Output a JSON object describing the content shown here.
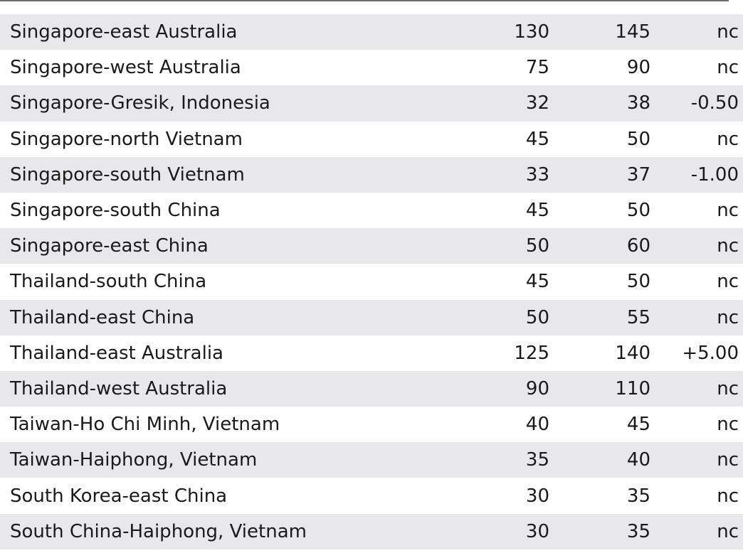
{
  "rows": [
    {
      "route": "Singapore-east Australia",
      "low": "130",
      "high": "145",
      "change": "nc"
    },
    {
      "route": "Singapore-west Australia",
      "low": "75",
      "high": "90",
      "change": "nc"
    },
    {
      "route": "Singapore-Gresik, Indonesia",
      "low": "32",
      "high": "38",
      "change": "-0.50"
    },
    {
      "route": "Singapore-north Vietnam",
      "low": "45",
      "high": "50",
      "change": "nc"
    },
    {
      "route": "Singapore-south Vietnam",
      "low": "33",
      "high": "37",
      "change": "-1.00"
    },
    {
      "route": "Singapore-south China",
      "low": "45",
      "high": "50",
      "change": "nc"
    },
    {
      "route": "Singapore-east China",
      "low": "50",
      "high": "60",
      "change": "nc"
    },
    {
      "route": "Thailand-south China",
      "low": "45",
      "high": "50",
      "change": "nc"
    },
    {
      "route": "Thailand-east China",
      "low": "50",
      "high": "55",
      "change": "nc"
    },
    {
      "route": "Thailand-east Australia",
      "low": "125",
      "high": "140",
      "change": "+5.00"
    },
    {
      "route": "Thailand-west Australia",
      "low": "90",
      "high": "110",
      "change": "nc"
    },
    {
      "route": "Taiwan-Ho Chi Minh, Vietnam",
      "low": "40",
      "high": "45",
      "change": "nc"
    },
    {
      "route": "Taiwan-Haiphong, Vietnam",
      "low": "35",
      "high": "40",
      "change": "nc"
    },
    {
      "route": "South Korea-east China",
      "low": "30",
      "high": "35",
      "change": "nc"
    },
    {
      "route": "South China-Haiphong, Vietnam",
      "low": "30",
      "high": "35",
      "change": "nc"
    }
  ]
}
